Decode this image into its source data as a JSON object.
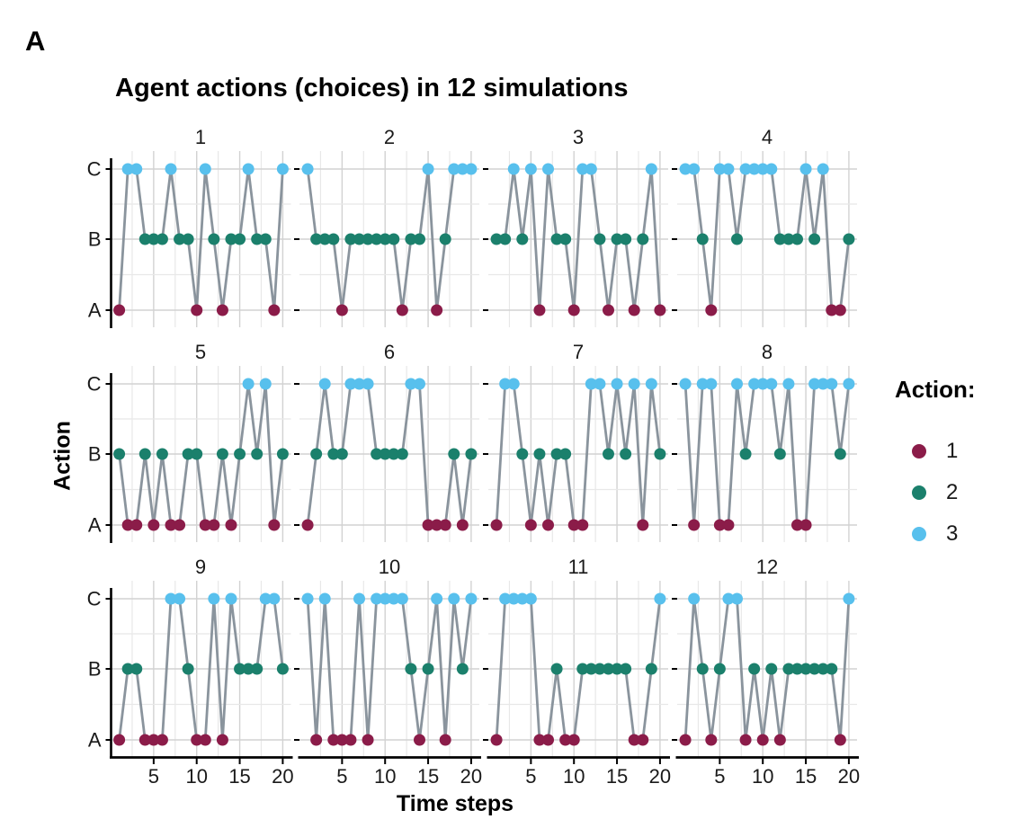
{
  "page": {
    "panel_label": "A"
  },
  "chart_data": {
    "type": "line",
    "title": "Agent actions (choices) in 12 simulations",
    "xlabel": "Time steps",
    "ylabel": "Action",
    "x_range": [
      1,
      20
    ],
    "x_ticks": [
      5,
      10,
      15,
      20
    ],
    "y_tick_labels": [
      "A",
      "B",
      "C"
    ],
    "grid": "major+minor on, white background",
    "facet_layout": "3 rows x 4 columns",
    "line_color": "#8A949D",
    "legend": {
      "title": "Action:",
      "position": "right",
      "entries": [
        {
          "label": "1",
          "action": 1,
          "color": "#8B1C49"
        },
        {
          "label": "2",
          "action": 2,
          "color": "#1B806C"
        },
        {
          "label": "3",
          "action": 3,
          "color": "#58C0ED"
        }
      ]
    },
    "action_levels": {
      "1": "A",
      "2": "B",
      "3": "C"
    },
    "facets": [
      {
        "name": "1",
        "values": [
          1,
          3,
          3,
          2,
          2,
          2,
          3,
          2,
          2,
          1,
          3,
          2,
          1,
          2,
          2,
          3,
          2,
          2,
          1,
          3
        ]
      },
      {
        "name": "2",
        "values": [
          3,
          2,
          2,
          2,
          1,
          2,
          2,
          2,
          2,
          2,
          2,
          1,
          2,
          2,
          3,
          1,
          2,
          3,
          3,
          3
        ]
      },
      {
        "name": "3",
        "values": [
          2,
          2,
          3,
          2,
          3,
          1,
          3,
          2,
          2,
          1,
          3,
          3,
          2,
          1,
          2,
          2,
          1,
          2,
          3,
          1
        ]
      },
      {
        "name": "4",
        "values": [
          3,
          3,
          2,
          1,
          3,
          3,
          2,
          3,
          3,
          3,
          3,
          2,
          2,
          2,
          3,
          2,
          3,
          1,
          1,
          2
        ]
      },
      {
        "name": "5",
        "values": [
          2,
          1,
          1,
          2,
          1,
          2,
          1,
          1,
          2,
          2,
          1,
          1,
          2,
          1,
          2,
          3,
          2,
          3,
          1,
          2
        ]
      },
      {
        "name": "6",
        "values": [
          1,
          2,
          3,
          2,
          2,
          3,
          3,
          3,
          2,
          2,
          2,
          2,
          3,
          3,
          1,
          1,
          1,
          2,
          1,
          2
        ]
      },
      {
        "name": "7",
        "values": [
          1,
          3,
          3,
          2,
          1,
          2,
          1,
          2,
          2,
          1,
          1,
          3,
          3,
          2,
          3,
          2,
          3,
          1,
          3,
          2
        ]
      },
      {
        "name": "8",
        "values": [
          3,
          1,
          3,
          3,
          1,
          1,
          3,
          2,
          3,
          3,
          3,
          2,
          3,
          1,
          1,
          3,
          3,
          3,
          2,
          3
        ]
      },
      {
        "name": "9",
        "values": [
          1,
          2,
          2,
          1,
          1,
          1,
          3,
          3,
          2,
          1,
          1,
          3,
          1,
          3,
          2,
          2,
          2,
          3,
          3,
          2
        ]
      },
      {
        "name": "10",
        "values": [
          3,
          1,
          3,
          1,
          1,
          1,
          3,
          1,
          3,
          3,
          3,
          3,
          2,
          1,
          2,
          3,
          1,
          3,
          2,
          3
        ]
      },
      {
        "name": "11",
        "values": [
          1,
          3,
          3,
          3,
          3,
          1,
          1,
          2,
          1,
          1,
          2,
          2,
          2,
          2,
          2,
          2,
          1,
          1,
          2,
          3
        ]
      },
      {
        "name": "12",
        "values": [
          1,
          3,
          2,
          1,
          2,
          3,
          3,
          1,
          2,
          1,
          2,
          1,
          2,
          2,
          2,
          2,
          2,
          2,
          1,
          3
        ]
      }
    ]
  }
}
